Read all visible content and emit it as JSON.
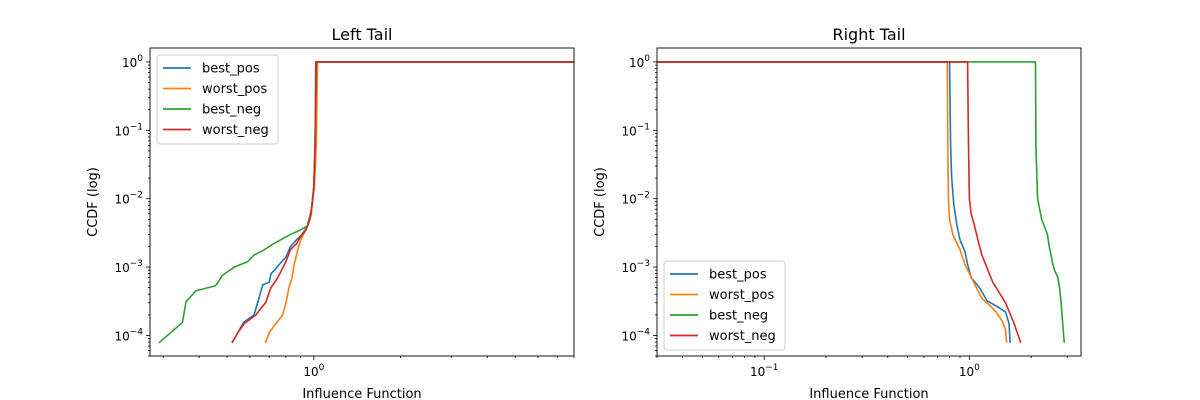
{
  "chart_data": [
    {
      "type": "line",
      "title": "Left Tail",
      "xlabel": "Influence Function",
      "ylabel": "CCDF (log)",
      "xscale": "log",
      "yscale": "log",
      "xlim": [
        0.27,
        8.0
      ],
      "ylim": [
        5e-05,
        1.6
      ],
      "xticks": [
        {
          "value": 1,
          "label": "10^0"
        }
      ],
      "yticks": [
        {
          "value": 0.0001,
          "label": "10^-4"
        },
        {
          "value": 0.001,
          "label": "10^-3"
        },
        {
          "value": 0.01,
          "label": "10^-2"
        },
        {
          "value": 0.1,
          "label": "10^-1"
        },
        {
          "value": 1,
          "label": "10^0"
        }
      ],
      "grid": false,
      "legend_position": "top-left",
      "series": [
        {
          "name": "best_pos",
          "color": "#1f77b4",
          "points": [
            [
              0.52,
              7.8e-05
            ],
            [
              0.545,
              0.00011
            ],
            [
              0.57,
              0.000155
            ],
            [
              0.62,
              0.0002
            ],
            [
              0.645,
              0.00035
            ],
            [
              0.665,
              0.00055
            ],
            [
              0.7,
              0.0006
            ],
            [
              0.71,
              0.0008
            ],
            [
              0.73,
              0.0009
            ],
            [
              0.76,
              0.0011
            ],
            [
              0.8,
              0.0014
            ],
            [
              0.83,
              0.002
            ],
            [
              0.87,
              0.0025
            ],
            [
              0.91,
              0.003
            ],
            [
              0.95,
              0.004
            ],
            [
              0.98,
              0.007
            ],
            [
              1.0,
              0.015
            ],
            [
              1.01,
              0.06
            ],
            [
              1.015,
              1.0
            ],
            [
              8.0,
              1.0
            ]
          ]
        },
        {
          "name": "worst_pos",
          "color": "#ff7f0e",
          "points": [
            [
              0.68,
              7.8e-05
            ],
            [
              0.7,
              0.00011
            ],
            [
              0.73,
              0.00014
            ],
            [
              0.78,
              0.0002
            ],
            [
              0.8,
              0.0003
            ],
            [
              0.82,
              0.0005
            ],
            [
              0.84,
              0.0007
            ],
            [
              0.855,
              0.0011
            ],
            [
              0.88,
              0.0018
            ],
            [
              0.9,
              0.0025
            ],
            [
              0.93,
              0.0033
            ],
            [
              0.96,
              0.0045
            ],
            [
              0.985,
              0.008
            ],
            [
              1.005,
              0.015
            ],
            [
              1.02,
              0.06
            ],
            [
              1.03,
              1.0
            ],
            [
              8.0,
              1.0
            ]
          ]
        },
        {
          "name": "best_neg",
          "color": "#2ca02c",
          "points": [
            [
              0.29,
              7.8e-05
            ],
            [
              0.35,
              0.000155
            ],
            [
              0.36,
              0.00031
            ],
            [
              0.39,
              0.00045
            ],
            [
              0.455,
              0.00053
            ],
            [
              0.465,
              0.0006
            ],
            [
              0.48,
              0.00075
            ],
            [
              0.53,
              0.001
            ],
            [
              0.59,
              0.0012
            ],
            [
              0.62,
              0.0015
            ],
            [
              0.66,
              0.0017
            ],
            [
              0.7,
              0.002
            ],
            [
              0.74,
              0.0023
            ],
            [
              0.78,
              0.0026
            ],
            [
              0.83,
              0.003
            ],
            [
              0.9,
              0.0035
            ],
            [
              0.95,
              0.004
            ],
            [
              0.98,
              0.006
            ],
            [
              1.0,
              0.015
            ],
            [
              1.01,
              0.06
            ],
            [
              1.02,
              1.0
            ],
            [
              8.0,
              1.0
            ]
          ]
        },
        {
          "name": "worst_neg",
          "color": "#d62728",
          "points": [
            [
              0.52,
              7.8e-05
            ],
            [
              0.545,
              0.00011
            ],
            [
              0.575,
              0.00015
            ],
            [
              0.63,
              0.0002
            ],
            [
              0.655,
              0.00025
            ],
            [
              0.68,
              0.0003
            ],
            [
              0.71,
              0.0005
            ],
            [
              0.75,
              0.0007
            ],
            [
              0.8,
              0.0012
            ],
            [
              0.83,
              0.0018
            ],
            [
              0.87,
              0.0022
            ],
            [
              0.9,
              0.0028
            ],
            [
              0.94,
              0.0035
            ],
            [
              0.97,
              0.005
            ],
            [
              0.99,
              0.009
            ],
            [
              1.0,
              0.015
            ],
            [
              1.01,
              0.06
            ],
            [
              1.02,
              1.0
            ],
            [
              8.0,
              1.0
            ]
          ]
        }
      ]
    },
    {
      "type": "line",
      "title": "Right Tail",
      "xlabel": "Influence Function",
      "ylabel": "CCDF (log)",
      "xscale": "log",
      "yscale": "log",
      "xlim": [
        0.03,
        3.5
      ],
      "ylim": [
        5e-05,
        1.6
      ],
      "xticks": [
        {
          "value": 0.1,
          "label": "10^-1"
        },
        {
          "value": 1,
          "label": "10^0"
        }
      ],
      "yticks": [
        {
          "value": 0.0001,
          "label": "10^-4"
        },
        {
          "value": 0.001,
          "label": "10^-3"
        },
        {
          "value": 0.01,
          "label": "10^-2"
        },
        {
          "value": 0.1,
          "label": "10^-1"
        },
        {
          "value": 1,
          "label": "10^0"
        }
      ],
      "grid": false,
      "legend_position": "bottom-left",
      "series": [
        {
          "name": "best_pos",
          "color": "#1f77b4",
          "points": [
            [
              0.03,
              1.0
            ],
            [
              0.8,
              1.0
            ],
            [
              0.81,
              0.06
            ],
            [
              0.82,
              0.02
            ],
            [
              0.84,
              0.008
            ],
            [
              0.87,
              0.004
            ],
            [
              0.9,
              0.0025
            ],
            [
              0.95,
              0.0017
            ],
            [
              0.98,
              0.0011
            ],
            [
              1.02,
              0.0007
            ],
            [
              1.12,
              0.0005
            ],
            [
              1.22,
              0.00032
            ],
            [
              1.35,
              0.00027
            ],
            [
              1.5,
              0.00022
            ],
            [
              1.56,
              0.00015
            ],
            [
              1.58,
              7.8e-05
            ]
          ]
        },
        {
          "name": "worst_pos",
          "color": "#ff7f0e",
          "points": [
            [
              0.03,
              1.0
            ],
            [
              0.78,
              1.0
            ],
            [
              0.785,
              0.06
            ],
            [
              0.79,
              0.01
            ],
            [
              0.8,
              0.005
            ],
            [
              0.83,
              0.003
            ],
            [
              0.87,
              0.0022
            ],
            [
              0.9,
              0.0018
            ],
            [
              0.95,
              0.0011
            ],
            [
              1.0,
              0.0008
            ],
            [
              1.05,
              0.0006
            ],
            [
              1.1,
              0.00045
            ],
            [
              1.15,
              0.00035
            ],
            [
              1.25,
              0.00028
            ],
            [
              1.35,
              0.00022
            ],
            [
              1.45,
              0.00016
            ],
            [
              1.5,
              0.00012
            ],
            [
              1.52,
              7.8e-05
            ]
          ]
        },
        {
          "name": "best_neg",
          "color": "#2ca02c",
          "points": [
            [
              0.03,
              1.0
            ],
            [
              2.1,
              1.0
            ],
            [
              2.11,
              0.06
            ],
            [
              2.15,
              0.01
            ],
            [
              2.25,
              0.005
            ],
            [
              2.4,
              0.003
            ],
            [
              2.45,
              0.002
            ],
            [
              2.5,
              0.0015
            ],
            [
              2.55,
              0.0011
            ],
            [
              2.6,
              0.0009
            ],
            [
              2.7,
              0.0007
            ],
            [
              2.75,
              0.0005
            ],
            [
              2.8,
              0.0003
            ],
            [
              2.85,
              0.00015
            ],
            [
              2.9,
              7.8e-05
            ]
          ]
        },
        {
          "name": "worst_neg",
          "color": "#d62728",
          "points": [
            [
              0.03,
              1.0
            ],
            [
              0.98,
              1.0
            ],
            [
              0.99,
              0.06
            ],
            [
              1.0,
              0.01
            ],
            [
              1.02,
              0.006
            ],
            [
              1.06,
              0.004
            ],
            [
              1.1,
              0.0025
            ],
            [
              1.15,
              0.0015
            ],
            [
              1.2,
              0.0011
            ],
            [
              1.25,
              0.0008
            ],
            [
              1.3,
              0.0006
            ],
            [
              1.38,
              0.00045
            ],
            [
              1.5,
              0.0003
            ],
            [
              1.65,
              0.00015
            ],
            [
              1.78,
              7.8e-05
            ]
          ]
        }
      ]
    }
  ]
}
